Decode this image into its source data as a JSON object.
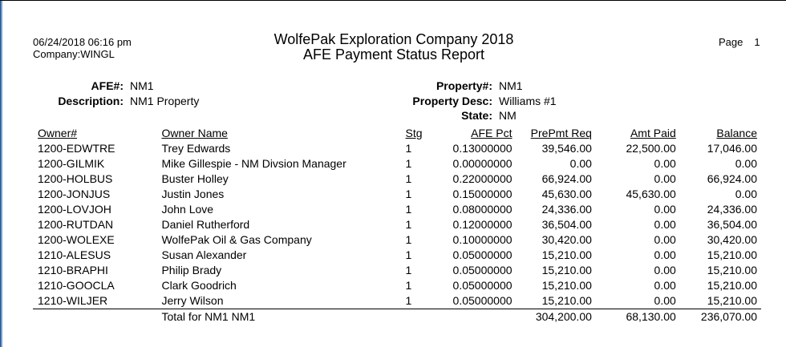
{
  "report": {
    "run_date": "06/24/2018  06:16 pm",
    "company": "Company:WINGL",
    "title_line1": "WolfePak Exploration Company 2018",
    "title_line2": "AFE Payment Status Report",
    "page_label": "Page",
    "page_number": "1"
  },
  "afe": {
    "afe_label": "AFE#:",
    "afe_value": "NM1",
    "description_label": "Description:",
    "description_value": "NM1 Property",
    "property_label": "Property#:",
    "property_value": "NM1",
    "property_desc_label": "Property Desc:",
    "property_desc_value": "Williams #1",
    "state_label": "State:",
    "state_value": "NM"
  },
  "table": {
    "columns": [
      "Owner#",
      "Owner Name",
      "Stg",
      "AFE Pct",
      "PrePmt Req",
      "Amt Paid",
      "Balance"
    ],
    "rows": [
      [
        "1200-EDWTRE",
        "Trey Edwards",
        "1",
        "0.13000000",
        "39,546.00",
        "22,500.00",
        "17,046.00"
      ],
      [
        "1200-GILMIK",
        "Mike Gillespie - NM Divsion Manager",
        "1",
        "0.00000000",
        "0.00",
        "0.00",
        "0.00"
      ],
      [
        "1200-HOLBUS",
        "Buster Holley",
        "1",
        "0.22000000",
        "66,924.00",
        "0.00",
        "66,924.00"
      ],
      [
        "1200-JONJUS",
        "Justin Jones",
        "1",
        "0.15000000",
        "45,630.00",
        "45,630.00",
        "0.00"
      ],
      [
        "1200-LOVJOH",
        "John Love",
        "1",
        "0.08000000",
        "24,336.00",
        "0.00",
        "24,336.00"
      ],
      [
        "1200-RUTDAN",
        "Daniel Rutherford",
        "1",
        "0.12000000",
        "36,504.00",
        "0.00",
        "36,504.00"
      ],
      [
        "1200-WOLEXE",
        "WolfePak Oil & Gas Company",
        "1",
        "0.10000000",
        "30,420.00",
        "0.00",
        "30,420.00"
      ],
      [
        "1210-ALESUS",
        "Susan Alexander",
        "1",
        "0.05000000",
        "15,210.00",
        "0.00",
        "15,210.00"
      ],
      [
        "1210-BRAPHI",
        "Philip Brady",
        "1",
        "0.05000000",
        "15,210.00",
        "0.00",
        "15,210.00"
      ],
      [
        "1210-GOOCLA",
        "Clark Goodrich",
        "1",
        "0.05000000",
        "15,210.00",
        "0.00",
        "15,210.00"
      ],
      [
        "1210-WILJER",
        "Jerry Wilson",
        "1",
        "0.05000000",
        "15,210.00",
        "0.00",
        "15,210.00"
      ]
    ],
    "total": {
      "label": "Total for NM1  NM1",
      "prepmt_req": "304,200.00",
      "amt_paid": "68,130.00",
      "balance": "236,070.00"
    }
  }
}
